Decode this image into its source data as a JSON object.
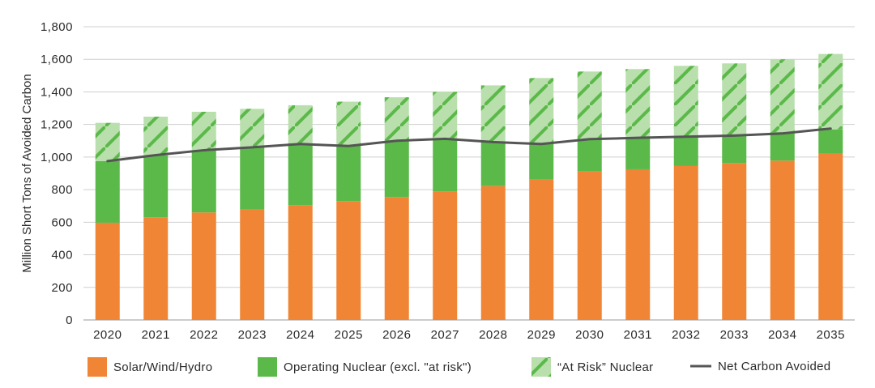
{
  "chart_data": {
    "type": "bar",
    "stacked": true,
    "title": "",
    "xlabel": "",
    "ylabel": "Million Short Tons of Avoided Carbon",
    "ylim": [
      0,
      1800
    ],
    "yticks": [
      0,
      200,
      400,
      600,
      800,
      1000,
      1200,
      1400,
      1600,
      1800
    ],
    "ytick_labels": [
      "0",
      "200",
      "400",
      "600",
      "800",
      "1,000",
      "1,200",
      "1,400",
      "1,600",
      "1,800"
    ],
    "grid": true,
    "legend_position": "bottom",
    "categories": [
      "2020",
      "2021",
      "2022",
      "2023",
      "2024",
      "2025",
      "2026",
      "2027",
      "2028",
      "2029",
      "2030",
      "2031",
      "2032",
      "2033",
      "2034",
      "2035"
    ],
    "series": [
      {
        "name": "Solar/Wind/Hydro",
        "kind": "bar",
        "color": "#f08535",
        "values": [
          597,
          630,
          660,
          678,
          705,
          730,
          755,
          790,
          822,
          865,
          913,
          925,
          945,
          963,
          978,
          1020
        ]
      },
      {
        "name": "Operating Nuclear (excl. \"at risk\")",
        "kind": "bar",
        "color": "#5bb949",
        "values": [
          378,
          380,
          380,
          385,
          380,
          345,
          345,
          320,
          270,
          215,
          197,
          197,
          180,
          170,
          175,
          150
        ]
      },
      {
        "name": "“At Risk” Nuclear",
        "kind": "bar",
        "pattern": "hatch",
        "color": "#b9dfad",
        "hatch_color": "#5bb949",
        "values": [
          235,
          238,
          238,
          233,
          233,
          265,
          267,
          290,
          348,
          405,
          415,
          418,
          435,
          442,
          447,
          463
        ]
      },
      {
        "name": "Net Carbon Avoided",
        "kind": "line",
        "color": "#555555",
        "values": [
          975,
          1012,
          1042,
          1060,
          1080,
          1068,
          1100,
          1112,
          1092,
          1080,
          1110,
          1118,
          1125,
          1132,
          1145,
          1175
        ]
      }
    ]
  }
}
